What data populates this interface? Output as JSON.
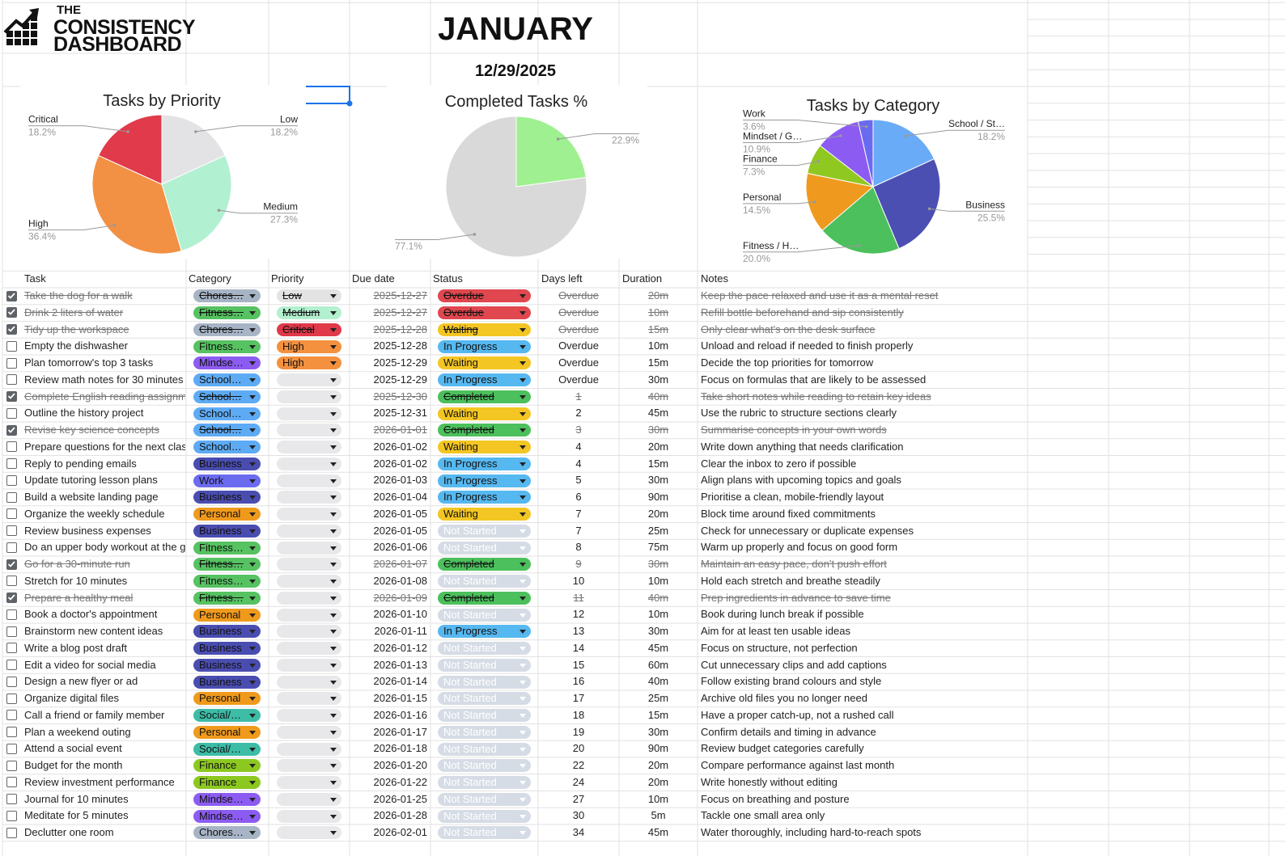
{
  "header": {
    "brand": [
      "THE",
      "CONSISTENCY",
      "DASHBOARD"
    ],
    "month": "JANUARY",
    "date": "12/29/2025"
  },
  "chart_data": [
    {
      "type": "pie",
      "title": "Tasks by Priority",
      "categories": [
        "Low",
        "Medium",
        "High",
        "Critical"
      ],
      "values": [
        18.2,
        27.3,
        36.4,
        18.2
      ],
      "value_labels": [
        "18.2%",
        "27.3%",
        "36.4%",
        "18.2%"
      ],
      "colors": [
        "#e3e3e6",
        "#b2f0d2",
        "#f29043",
        "#e03a4b"
      ]
    },
    {
      "type": "pie",
      "title": "Completed Tasks %",
      "categories": [
        null,
        null
      ],
      "values": [
        22.9,
        77.1
      ],
      "value_labels": [
        "22.9%",
        "77.1%"
      ],
      "colors": [
        "#9ef090",
        "#d9d9d9"
      ]
    },
    {
      "type": "pie",
      "title": "Tasks by Category",
      "categories": [
        "School / St…",
        "Business",
        "Fitness / H…",
        "Personal",
        "Finance",
        "Mindset / G…",
        "Work"
      ],
      "values": [
        18.2,
        25.5,
        20.0,
        14.5,
        7.3,
        10.9,
        3.6
      ],
      "value_labels": [
        "18.2%",
        "25.5%",
        "20.0%",
        "14.5%",
        "7.3%",
        "10.9%",
        "3.6%"
      ],
      "colors": [
        "#6aabf7",
        "#4b4fb2",
        "#4cc05c",
        "#ef9a1e",
        "#8fc820",
        "#8c5cf2",
        "#6a6af0"
      ]
    }
  ],
  "table": {
    "columns": [
      "Task",
      "Category",
      "Priority",
      "Due date",
      "Status",
      "Days left",
      "Duration",
      "Notes"
    ],
    "rows": [
      {
        "done": true,
        "task": "Take the dog for a walk",
        "category": "Chores…",
        "priority": "Low",
        "due": "2025-12-27",
        "status": "Overdue",
        "days_left": "Overdue",
        "duration": "20m",
        "notes": "Keep the pace relaxed and use it as a mental reset"
      },
      {
        "done": true,
        "task": "Drink 2 liters of water",
        "category": "Fitness…",
        "priority": "Medium",
        "due": "2025-12-27",
        "status": "Overdue",
        "days_left": "Overdue",
        "duration": "10m",
        "notes": "Refill bottle beforehand and sip consistently"
      },
      {
        "done": true,
        "task": "Tidy up the workspace",
        "category": "Chores…",
        "priority": "Critical",
        "due": "2025-12-28",
        "status": "Waiting",
        "days_left": "Overdue",
        "duration": "15m",
        "notes": "Only clear what's on the desk surface"
      },
      {
        "done": false,
        "task": "Empty the dishwasher",
        "category": "Fitness…",
        "priority": "High",
        "due": "2025-12-28",
        "status": "In Progress",
        "days_left": "Overdue",
        "duration": "10m",
        "notes": "Unload and reload if needed to finish properly"
      },
      {
        "done": false,
        "task": "Plan tomorrow's top 3 tasks",
        "category": "Mindse…",
        "priority": "High",
        "due": "2025-12-29",
        "status": "Waiting",
        "days_left": "Overdue",
        "duration": "15m",
        "notes": "Decide the top priorities for tomorrow"
      },
      {
        "done": false,
        "task": "Review math notes for 30 minutes",
        "category": "School…",
        "priority": null,
        "due": "2025-12-29",
        "status": "In Progress",
        "days_left": "Overdue",
        "duration": "30m",
        "notes": "Focus on formulas that are likely to be assessed"
      },
      {
        "done": true,
        "task": "Complete English reading assignm",
        "category": "School…",
        "priority": null,
        "due": "2025-12-30",
        "status": "Completed",
        "days_left": 1,
        "duration": "40m",
        "notes": "Take short notes while reading to retain key ideas"
      },
      {
        "done": false,
        "task": "Outline the history project",
        "category": "School…",
        "priority": null,
        "due": "2025-12-31",
        "status": "Waiting",
        "days_left": 2,
        "duration": "45m",
        "notes": "Use the rubric to structure sections clearly"
      },
      {
        "done": true,
        "task": "Revise key science concepts",
        "category": "School…",
        "priority": null,
        "due": "2026-01-01",
        "status": "Completed",
        "days_left": 3,
        "duration": "30m",
        "notes": "Summarise concepts in your own words"
      },
      {
        "done": false,
        "task": "Prepare questions for the next clas",
        "category": "School…",
        "priority": null,
        "due": "2026-01-02",
        "status": "Waiting",
        "days_left": 4,
        "duration": "20m",
        "notes": "Write down anything that needs clarification"
      },
      {
        "done": false,
        "task": "Reply to pending emails",
        "category": "Business",
        "priority": null,
        "due": "2026-01-02",
        "status": "In Progress",
        "days_left": 4,
        "duration": "15m",
        "notes": "Clear the inbox to zero if possible"
      },
      {
        "done": false,
        "task": "Update tutoring lesson plans",
        "category": "Work",
        "priority": null,
        "due": "2026-01-03",
        "status": "In Progress",
        "days_left": 5,
        "duration": "30m",
        "notes": "Align plans with upcoming topics and goals"
      },
      {
        "done": false,
        "task": "Build a website landing page",
        "category": "Business",
        "priority": null,
        "due": "2026-01-04",
        "status": "In Progress",
        "days_left": 6,
        "duration": "90m",
        "notes": "Prioritise a clean, mobile-friendly layout"
      },
      {
        "done": false,
        "task": "Organize the weekly schedule",
        "category": "Personal",
        "priority": null,
        "due": "2026-01-05",
        "status": "Waiting",
        "days_left": 7,
        "duration": "20m",
        "notes": "Block time around fixed commitments"
      },
      {
        "done": false,
        "task": "Review business expenses",
        "category": "Business",
        "priority": null,
        "due": "2026-01-05",
        "status": "Not Started",
        "days_left": 7,
        "duration": "25m",
        "notes": "Check for unnecessary or duplicate expenses"
      },
      {
        "done": false,
        "task": "Do an upper body workout at the g",
        "category": "Fitness…",
        "priority": null,
        "due": "2026-01-06",
        "status": "Not Started",
        "days_left": 8,
        "duration": "75m",
        "notes": "Warm up properly and focus on good form"
      },
      {
        "done": true,
        "task": "Go for a 30-minute run",
        "category": "Fitness…",
        "priority": null,
        "due": "2026-01-07",
        "status": "Completed",
        "days_left": 9,
        "duration": "30m",
        "notes": "Maintain an easy pace, don't push effort"
      },
      {
        "done": false,
        "task": "Stretch for 10 minutes",
        "category": "Fitness…",
        "priority": null,
        "due": "2026-01-08",
        "status": "Not Started",
        "days_left": 10,
        "duration": "10m",
        "notes": "Hold each stretch and breathe steadily"
      },
      {
        "done": true,
        "task": "Prepare a healthy meal",
        "category": "Fitness…",
        "priority": null,
        "due": "2026-01-09",
        "status": "Completed",
        "days_left": 11,
        "duration": "40m",
        "notes": "Prep ingredients in advance to save time"
      },
      {
        "done": false,
        "task": "Book a doctor's appointment",
        "category": "Personal",
        "priority": null,
        "due": "2026-01-10",
        "status": "Not Started",
        "days_left": 12,
        "duration": "10m",
        "notes": "Book during lunch break if possible"
      },
      {
        "done": false,
        "task": "Brainstorm new content ideas",
        "category": "Business",
        "priority": null,
        "due": "2026-01-11",
        "status": "In Progress",
        "days_left": 13,
        "duration": "30m",
        "notes": "Aim for at least ten usable ideas"
      },
      {
        "done": false,
        "task": "Write a blog post draft",
        "category": "Business",
        "priority": null,
        "due": "2026-01-12",
        "status": "Not Started",
        "days_left": 14,
        "duration": "45m",
        "notes": "Focus on structure, not perfection"
      },
      {
        "done": false,
        "task": "Edit a video for social media",
        "category": "Business",
        "priority": null,
        "due": "2026-01-13",
        "status": "Not Started",
        "days_left": 15,
        "duration": "60m",
        "notes": "Cut unnecessary clips and add captions"
      },
      {
        "done": false,
        "task": "Design a new flyer or ad",
        "category": "Business",
        "priority": null,
        "due": "2026-01-14",
        "status": "Not Started",
        "days_left": 16,
        "duration": "40m",
        "notes": "Follow existing brand colours and style"
      },
      {
        "done": false,
        "task": "Organize digital files",
        "category": "Personal",
        "priority": null,
        "due": "2026-01-15",
        "status": "Not Started",
        "days_left": 17,
        "duration": "25m",
        "notes": "Archive old files you no longer need"
      },
      {
        "done": false,
        "task": "Call a friend or family member",
        "category": "Social/…",
        "priority": null,
        "due": "2026-01-16",
        "status": "Not Started",
        "days_left": 18,
        "duration": "15m",
        "notes": "Have a proper catch-up, not a rushed call"
      },
      {
        "done": false,
        "task": "Plan a weekend outing",
        "category": "Personal",
        "priority": null,
        "due": "2026-01-17",
        "status": "Not Started",
        "days_left": 19,
        "duration": "30m",
        "notes": "Confirm details and timing in advance"
      },
      {
        "done": false,
        "task": "Attend a social event",
        "category": "Social/…",
        "priority": null,
        "due": "2026-01-18",
        "status": "Not Started",
        "days_left": 20,
        "duration": "90m",
        "notes": "Review budget categories carefully"
      },
      {
        "done": false,
        "task": "Budget for the month",
        "category": "Finance",
        "priority": null,
        "due": "2026-01-20",
        "status": "Not Started",
        "days_left": 22,
        "duration": "20m",
        "notes": "Compare performance against last month"
      },
      {
        "done": false,
        "task": "Review investment performance",
        "category": "Finance",
        "priority": null,
        "due": "2026-01-22",
        "status": "Not Started",
        "days_left": 24,
        "duration": "20m",
        "notes": "Write honestly without editing"
      },
      {
        "done": false,
        "task": "Journal for 10 minutes",
        "category": "Mindse…",
        "priority": null,
        "due": "2026-01-25",
        "status": "Not Started",
        "days_left": 27,
        "duration": "10m",
        "notes": "Focus on breathing and posture"
      },
      {
        "done": false,
        "task": "Meditate for 5 minutes",
        "category": "Mindse…",
        "priority": null,
        "due": "2026-01-28",
        "status": "Not Started",
        "days_left": 30,
        "duration": "5m",
        "notes": "Tackle one small area only"
      },
      {
        "done": false,
        "task": "Declutter one room",
        "category": "Chores…",
        "priority": null,
        "due": "2026-02-01",
        "status": "Not Started",
        "days_left": 34,
        "duration": "45m",
        "notes": "Water thoroughly, including hard-to-reach spots"
      }
    ]
  },
  "chip_colors": {
    "category": {
      "Chores…": "#a7b4c6",
      "Fitness…": "#56c261",
      "Mindse…": "#8c5cf2",
      "School…": "#5eabf5",
      "Business": "#4a4db0",
      "Work": "#6b6bf0",
      "Personal": "#f09a1c",
      "Social/…": "#3dbca6",
      "Finance": "#8cc820"
    },
    "priority": {
      "Low": "#e3e3e3",
      "Medium": "#b3f0cf",
      "Critical": "#e0394a",
      "High": "#f4913f"
    },
    "priority_empty": "#e8e8ea",
    "status": {
      "Overdue": "#e0474f",
      "Waiting": "#f4c623",
      "In Progress": "#56b8f0",
      "Completed": "#4cc05c",
      "Not Started": "#d6dce5"
    },
    "status_light_text": "Not Started"
  }
}
